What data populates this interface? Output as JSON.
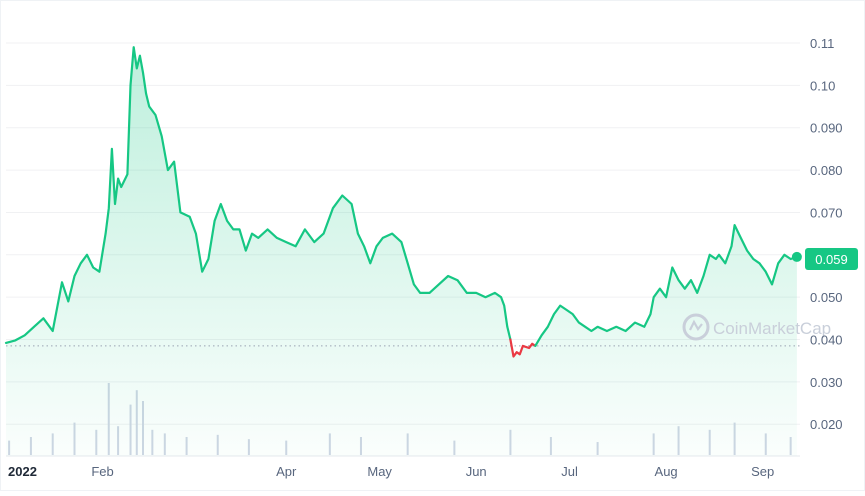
{
  "chart_data": {
    "type": "area",
    "title": "",
    "xlabel": "",
    "ylabel": "",
    "x_tick_labels": [
      "2022",
      "Feb",
      "Apr",
      "May",
      "Jun",
      "Jul",
      "Aug",
      "Sep"
    ],
    "x_ticks": [
      "2022-01-01",
      "2022-02-01",
      "2022-04-01",
      "2022-05-01",
      "2022-06-01",
      "2022-07-01",
      "2022-08-01",
      "2022-09-01"
    ],
    "y_tick_labels": [
      "0.11",
      "0.10",
      "0.090",
      "0.080",
      "0.070",
      "0.060",
      "0.050",
      "0.040",
      "0.030",
      "0.020"
    ],
    "y_ticks": [
      0.11,
      0.1,
      0.09,
      0.08,
      0.07,
      0.06,
      0.05,
      0.04,
      0.03,
      0.02
    ],
    "ylim": [
      0.0125,
      0.1185
    ],
    "xlim": [
      "2022-01-01",
      "2022-09-13"
    ],
    "grid": true,
    "baseline_value": 0.0385,
    "current_price": {
      "value": 0.059,
      "label": "0.059"
    },
    "watermark": "CoinMarketCap",
    "colors": {
      "up": "#16c784",
      "down": "#ea3943",
      "area_top": "#16c784",
      "grid": "#f0f1f3",
      "axis_text": "#58667e",
      "volume": "#cfd6e4"
    },
    "series": [
      {
        "values": [
          [
            "2022-01-01",
            0.0392
          ],
          [
            "2022-01-04",
            0.0398
          ],
          [
            "2022-01-07",
            0.041
          ],
          [
            "2022-01-10",
            0.043
          ],
          [
            "2022-01-13",
            0.045
          ],
          [
            "2022-01-16",
            0.042
          ],
          [
            "2022-01-19",
            0.0535
          ],
          [
            "2022-01-21",
            0.049
          ],
          [
            "2022-01-23",
            0.055
          ],
          [
            "2022-01-25",
            0.058
          ],
          [
            "2022-01-27",
            0.06
          ],
          [
            "2022-01-29",
            0.057
          ],
          [
            "2022-01-31",
            0.056
          ],
          [
            "2022-02-02",
            0.065
          ],
          [
            "2022-02-03",
            0.071
          ],
          [
            "2022-02-04",
            0.085
          ],
          [
            "2022-02-05",
            0.072
          ],
          [
            "2022-02-06",
            0.078
          ],
          [
            "2022-02-07",
            0.076
          ],
          [
            "2022-02-09",
            0.079
          ],
          [
            "2022-02-10",
            0.1
          ],
          [
            "2022-02-11",
            0.109
          ],
          [
            "2022-02-12",
            0.104
          ],
          [
            "2022-02-13",
            0.107
          ],
          [
            "2022-02-14",
            0.103
          ],
          [
            "2022-02-15",
            0.098
          ],
          [
            "2022-02-16",
            0.095
          ],
          [
            "2022-02-18",
            0.093
          ],
          [
            "2022-02-20",
            0.088
          ],
          [
            "2022-02-22",
            0.08
          ],
          [
            "2022-02-24",
            0.082
          ],
          [
            "2022-02-26",
            0.07
          ],
          [
            "2022-03-01",
            0.069
          ],
          [
            "2022-03-03",
            0.065
          ],
          [
            "2022-03-05",
            0.056
          ],
          [
            "2022-03-07",
            0.059
          ],
          [
            "2022-03-09",
            0.068
          ],
          [
            "2022-03-11",
            0.072
          ],
          [
            "2022-03-13",
            0.068
          ],
          [
            "2022-03-15",
            0.066
          ],
          [
            "2022-03-17",
            0.066
          ],
          [
            "2022-03-19",
            0.061
          ],
          [
            "2022-03-21",
            0.065
          ],
          [
            "2022-03-23",
            0.064
          ],
          [
            "2022-03-26",
            0.066
          ],
          [
            "2022-03-29",
            0.064
          ],
          [
            "2022-04-01",
            0.063
          ],
          [
            "2022-04-04",
            0.062
          ],
          [
            "2022-04-07",
            0.066
          ],
          [
            "2022-04-10",
            0.063
          ],
          [
            "2022-04-13",
            0.065
          ],
          [
            "2022-04-16",
            0.071
          ],
          [
            "2022-04-19",
            0.074
          ],
          [
            "2022-04-22",
            0.072
          ],
          [
            "2022-04-24",
            0.065
          ],
          [
            "2022-04-26",
            0.062
          ],
          [
            "2022-04-28",
            0.058
          ],
          [
            "2022-04-30",
            0.062
          ],
          [
            "2022-05-02",
            0.064
          ],
          [
            "2022-05-05",
            0.065
          ],
          [
            "2022-05-08",
            0.063
          ],
          [
            "2022-05-10",
            0.058
          ],
          [
            "2022-05-12",
            0.053
          ],
          [
            "2022-05-14",
            0.051
          ],
          [
            "2022-05-17",
            0.051
          ],
          [
            "2022-05-20",
            0.053
          ],
          [
            "2022-05-23",
            0.055
          ],
          [
            "2022-05-26",
            0.054
          ],
          [
            "2022-05-29",
            0.051
          ],
          [
            "2022-06-01",
            0.051
          ],
          [
            "2022-06-04",
            0.05
          ],
          [
            "2022-06-07",
            0.051
          ],
          [
            "2022-06-09",
            0.05
          ],
          [
            "2022-06-10",
            0.048
          ],
          [
            "2022-06-11",
            0.043
          ],
          [
            "2022-06-12",
            0.04
          ]
        ]
      },
      {
        "values": [
          [
            "2022-06-12",
            0.04
          ],
          [
            "2022-06-13",
            0.036
          ],
          [
            "2022-06-14",
            0.037
          ],
          [
            "2022-06-15",
            0.0365
          ],
          [
            "2022-06-16",
            0.0385
          ],
          [
            "2022-06-18",
            0.038
          ],
          [
            "2022-06-19",
            0.039
          ],
          [
            "2022-06-20",
            0.0385
          ]
        ]
      },
      {
        "values": [
          [
            "2022-06-20",
            0.0385
          ],
          [
            "2022-06-22",
            0.041
          ],
          [
            "2022-06-24",
            0.043
          ],
          [
            "2022-06-26",
            0.046
          ],
          [
            "2022-06-28",
            0.048
          ],
          [
            "2022-06-30",
            0.047
          ],
          [
            "2022-07-02",
            0.046
          ],
          [
            "2022-07-04",
            0.044
          ],
          [
            "2022-07-06",
            0.043
          ],
          [
            "2022-07-08",
            0.042
          ],
          [
            "2022-07-10",
            0.043
          ],
          [
            "2022-07-13",
            0.042
          ],
          [
            "2022-07-16",
            0.043
          ],
          [
            "2022-07-19",
            0.042
          ],
          [
            "2022-07-22",
            0.044
          ],
          [
            "2022-07-25",
            0.043
          ],
          [
            "2022-07-27",
            0.046
          ],
          [
            "2022-07-28",
            0.05
          ],
          [
            "2022-07-30",
            0.052
          ],
          [
            "2022-08-01",
            0.05
          ],
          [
            "2022-08-03",
            0.057
          ],
          [
            "2022-08-05",
            0.054
          ],
          [
            "2022-08-07",
            0.052
          ],
          [
            "2022-08-09",
            0.054
          ],
          [
            "2022-08-11",
            0.051
          ],
          [
            "2022-08-13",
            0.055
          ],
          [
            "2022-08-15",
            0.06
          ],
          [
            "2022-08-17",
            0.059
          ],
          [
            "2022-08-18",
            0.06
          ],
          [
            "2022-08-20",
            0.058
          ],
          [
            "2022-08-22",
            0.062
          ],
          [
            "2022-08-23",
            0.067
          ],
          [
            "2022-08-25",
            0.064
          ],
          [
            "2022-08-27",
            0.061
          ],
          [
            "2022-08-29",
            0.059
          ],
          [
            "2022-08-31",
            0.058
          ],
          [
            "2022-09-02",
            0.056
          ],
          [
            "2022-09-04",
            0.053
          ],
          [
            "2022-09-06",
            0.058
          ],
          [
            "2022-09-08",
            0.06
          ],
          [
            "2022-09-10",
            0.059
          ],
          [
            "2022-09-12",
            0.0595
          ]
        ]
      }
    ],
    "volume": {
      "values": [
        [
          "2022-01-02",
          0.2
        ],
        [
          "2022-01-09",
          0.25
        ],
        [
          "2022-01-16",
          0.3
        ],
        [
          "2022-01-23",
          0.45
        ],
        [
          "2022-01-30",
          0.35
        ],
        [
          "2022-02-03",
          1.0
        ],
        [
          "2022-02-06",
          0.4
        ],
        [
          "2022-02-10",
          0.7
        ],
        [
          "2022-02-12",
          0.9
        ],
        [
          "2022-02-14",
          0.75
        ],
        [
          "2022-02-17",
          0.35
        ],
        [
          "2022-02-21",
          0.3
        ],
        [
          "2022-02-28",
          0.25
        ],
        [
          "2022-03-10",
          0.28
        ],
        [
          "2022-03-20",
          0.22
        ],
        [
          "2022-04-01",
          0.2
        ],
        [
          "2022-04-15",
          0.3
        ],
        [
          "2022-04-25",
          0.25
        ],
        [
          "2022-05-10",
          0.3
        ],
        [
          "2022-05-25",
          0.2
        ],
        [
          "2022-06-12",
          0.35
        ],
        [
          "2022-06-25",
          0.25
        ],
        [
          "2022-07-10",
          0.18
        ],
        [
          "2022-07-28",
          0.3
        ],
        [
          "2022-08-05",
          0.4
        ],
        [
          "2022-08-15",
          0.35
        ],
        [
          "2022-08-23",
          0.45
        ],
        [
          "2022-09-02",
          0.3
        ],
        [
          "2022-09-10",
          0.25
        ]
      ]
    }
  }
}
